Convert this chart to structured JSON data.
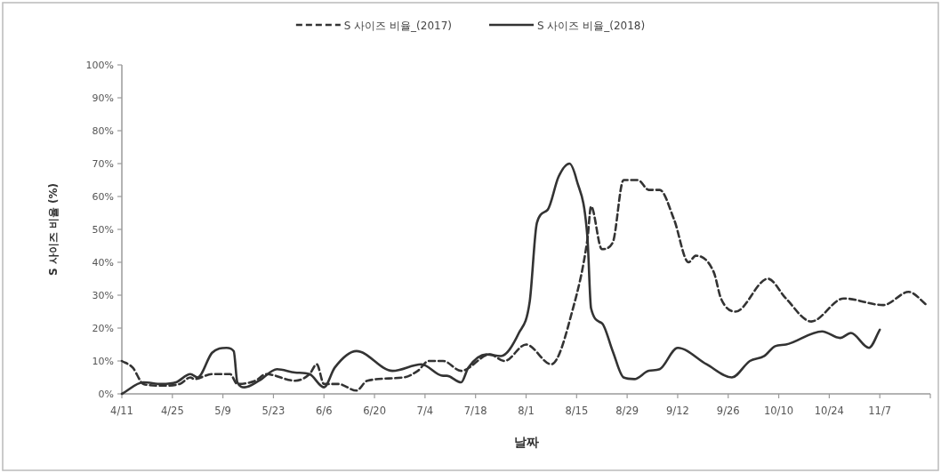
{
  "chart_data": {
    "type": "line",
    "xlabel": "날짜",
    "ylabel": "S 사이즈 비율 (%)",
    "legend": "top",
    "xlim": [
      "--04-11",
      "--11-21"
    ],
    "xticks": [
      {
        "value": "--04-11",
        "label": "4/11"
      },
      {
        "value": "--04-25",
        "label": "4/25"
      },
      {
        "value": "--05-09",
        "label": "5/9"
      },
      {
        "value": "--05-23",
        "label": "5/23"
      },
      {
        "value": "--06-06",
        "label": "6/6"
      },
      {
        "value": "--06-20",
        "label": "6/20"
      },
      {
        "value": "--07-04",
        "label": "7/4"
      },
      {
        "value": "--07-18",
        "label": "7/18"
      },
      {
        "value": "--08-01",
        "label": "8/1"
      },
      {
        "value": "--08-15",
        "label": "8/15"
      },
      {
        "value": "--08-29",
        "label": "8/29"
      },
      {
        "value": "--09-12",
        "label": "9/12"
      },
      {
        "value": "--09-26",
        "label": "9/26"
      },
      {
        "value": "--10-10",
        "label": "10/10"
      },
      {
        "value": "--10-24",
        "label": "10/24"
      },
      {
        "value": "--11-07",
        "label": "11/7"
      },
      {
        "value": "--11-21",
        "label": null
      }
    ],
    "ylim": [
      0,
      100
    ],
    "yticks": [
      {
        "value": 0,
        "label": "0%"
      },
      {
        "value": 10,
        "label": "10%"
      },
      {
        "value": 20,
        "label": "20%"
      },
      {
        "value": 30,
        "label": "30%"
      },
      {
        "value": 40,
        "label": "40%"
      },
      {
        "value": 50,
        "label": "50%"
      },
      {
        "value": 60,
        "label": "60%"
      },
      {
        "value": 70,
        "label": "70%"
      },
      {
        "value": 80,
        "label": "80%"
      },
      {
        "value": 90,
        "label": "90%"
      },
      {
        "value": 100,
        "label": "100%"
      }
    ],
    "series": [
      {
        "name": "S 사이즈 비율_(2017)",
        "color": "#333333",
        "line_style": "dashed",
        "x": [
          "--04-11",
          "--04-14",
          "--04-17",
          "--04-22",
          "--04-27",
          "--04-30",
          "--05-01",
          "--05-06",
          "--05-11",
          "--05-13",
          "--05-18",
          "--05-21",
          "--05-29",
          "--06-02",
          "--06-04",
          "--06-06",
          "--06-10",
          "--06-15",
          "--06-18",
          "--06-28",
          "--07-02",
          "--07-05",
          "--07-09",
          "--07-14",
          "--07-22",
          "--07-26",
          "--08-01",
          "--08-08",
          "--08-14",
          "--08-18",
          "--08-19",
          "--08-22",
          "--08-25",
          "--08-28",
          "--09-01",
          "--09-04",
          "--09-07",
          "--09-11",
          "--09-15",
          "--09-17",
          "--09-22",
          "--09-24",
          "--09-28",
          "--10-07",
          "--10-12",
          "--10-19",
          "--10-28",
          "--11-08",
          "--11-15",
          "--11-20"
        ],
        "values": [
          10,
          8,
          3,
          2.5,
          3,
          5,
          4.5,
          6,
          6,
          3,
          4,
          6,
          4,
          6,
          9,
          3,
          3,
          1,
          4,
          5,
          7,
          10,
          10,
          7,
          12,
          10,
          15,
          9,
          26,
          47,
          57,
          44,
          46,
          65,
          65,
          62,
          62,
          53,
          40,
          42,
          37,
          29,
          25,
          35,
          29,
          22,
          29,
          27,
          31,
          27
        ]
      },
      {
        "name": "S 사이즈 비율_(2018)",
        "color": "#333333",
        "line_style": "solid",
        "x": [
          "--04-11",
          "--04-17",
          "--04-22",
          "--04-26",
          "--04-30",
          "--05-02",
          "--05-06",
          "--05-10",
          "--05-12",
          "--05-13",
          "--05-15",
          "--05-19",
          "--05-24",
          "--05-29",
          "--06-02",
          "--06-06",
          "--06-09",
          "--06-15",
          "--06-25",
          "--07-03",
          "--07-09",
          "--07-10",
          "--07-14",
          "--07-16",
          "--07-21",
          "--07-25",
          "--07-30",
          "--08-02",
          "--08-04",
          "--08-07",
          "--08-10",
          "--08-13",
          "--08-15",
          "--08-18",
          "--08-19",
          "--08-22",
          "--08-25",
          "--08-28",
          "--08-31",
          "--09-04",
          "--09-07",
          "--09-12",
          "--09-20",
          "--09-27",
          "--10-02",
          "--10-06",
          "--10-09",
          "--10-12",
          "--10-22",
          "--10-27",
          "--10-30",
          "--11-04",
          "--11-07"
        ],
        "values": [
          0,
          3.5,
          3,
          3.5,
          6,
          5,
          12.5,
          14,
          13,
          3.5,
          2,
          4,
          7.5,
          6.5,
          6,
          2,
          8,
          13,
          7,
          9,
          5.5,
          5.5,
          3.5,
          8,
          12,
          11.5,
          18.5,
          28,
          52,
          56,
          66,
          70,
          65,
          47.5,
          26,
          21.5,
          13,
          5,
          4.5,
          7,
          7.5,
          14,
          9,
          5,
          10,
          11.5,
          14.5,
          15,
          19,
          17,
          18.5,
          14,
          19.5
        ]
      }
    ]
  }
}
